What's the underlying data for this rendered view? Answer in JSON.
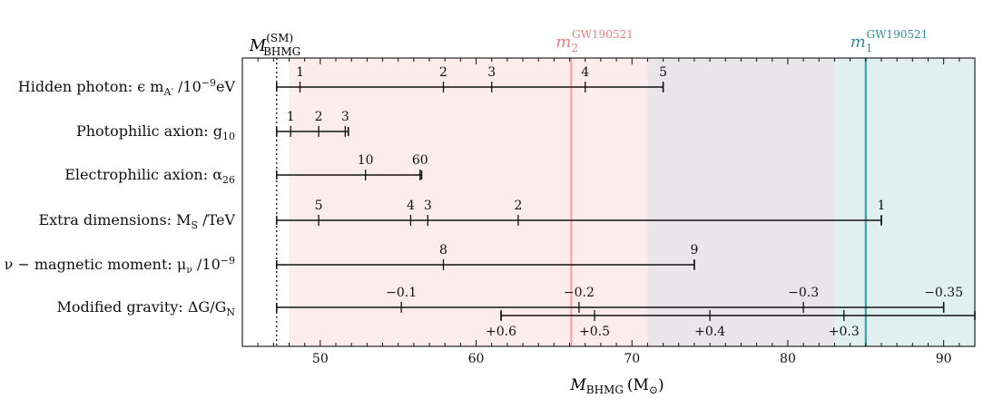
{
  "chart_data": {
    "type": "interval",
    "xlabel_main": "M",
    "xlabel_sub": "BHMG",
    "xlabel_unit": "(M",
    "xlabel_unit_sym": "⊙",
    "xlabel_unit_close": ")",
    "xlim": [
      45,
      92
    ],
    "xticks": [
      "50",
      "60",
      "70",
      "80",
      "90"
    ],
    "xtick_values": [
      50,
      60,
      70,
      80,
      90
    ],
    "colors": {
      "region_pink": "#fcecec",
      "region_gray": "#e8e6e8",
      "region_teal": "#e2efef",
      "line_m2": "#f4a5a8",
      "line_m1": "#3aa0a6",
      "label_m2": "#ee7f7f",
      "label_m1": "#2f8f8f",
      "axis": "#111111"
    },
    "regions": [
      {
        "name": "pink",
        "x0": 48,
        "x1": 71
      },
      {
        "name": "gray",
        "x0": 71,
        "x1": 83
      },
      {
        "name": "teal",
        "x0": 83,
        "x1": 92
      }
    ],
    "reference_lines": [
      {
        "key": "sm",
        "x": 47.2,
        "style": "dotted",
        "label_main": "M",
        "label_sup": "(SM)",
        "label_sub": "BHMG"
      },
      {
        "key": "m2",
        "x": 66.1,
        "style": "solid",
        "label_main": "m",
        "label_sub": "2",
        "label_sup": "GW190521"
      },
      {
        "key": "m1",
        "x": 85.0,
        "style": "solid",
        "label_main": "m",
        "label_sub": "1",
        "label_sup": "GW190521"
      }
    ],
    "rows": [
      {
        "label": "Hidden photon:  ϵ m",
        "label_sub": "A′",
        "label_tail": " /10",
        "label_sup": "−9",
        "label_end": "eV",
        "x_start": 47.2,
        "x_end": 72.0,
        "points": [
          {
            "x": 48.7,
            "label": "1"
          },
          {
            "x": 57.9,
            "label": "2"
          },
          {
            "x": 61.0,
            "label": "3"
          },
          {
            "x": 67.0,
            "label": "4"
          },
          {
            "x": 72.0,
            "label": "5"
          }
        ]
      },
      {
        "label": "Photophilic axion:  g",
        "label_sub": "10",
        "x_start": 47.2,
        "x_end": 51.8,
        "points": [
          {
            "x": 48.1,
            "label": "1"
          },
          {
            "x": 49.9,
            "label": "2"
          },
          {
            "x": 51.6,
            "label": "3"
          }
        ]
      },
      {
        "label": "Electrophilic axion:  α",
        "label_sub": "26",
        "x_start": 47.2,
        "x_end": 56.5,
        "points": [
          {
            "x": 52.9,
            "label": "10"
          },
          {
            "x": 56.4,
            "label": "60"
          }
        ]
      },
      {
        "label": "Extra dimensions:  M",
        "label_sub": "S",
        "label_tail": " /TeV",
        "x_start": 47.2,
        "x_end": 86.0,
        "points": [
          {
            "x": 49.9,
            "label": "5"
          },
          {
            "x": 55.8,
            "label": "4"
          },
          {
            "x": 56.9,
            "label": "3"
          },
          {
            "x": 62.7,
            "label": "2"
          },
          {
            "x": 86.0,
            "label": "1"
          }
        ]
      },
      {
        "label": "ν − magnetic moment:  μ",
        "label_sub": "ν",
        "label_tail": " /10",
        "label_sup": "−9",
        "x_start": 47.2,
        "x_end": 74.0,
        "points": [
          {
            "x": 57.9,
            "label": "8"
          },
          {
            "x": 74.0,
            "label": "9"
          }
        ]
      },
      {
        "label": "Modified gravity:  ΔG/G",
        "label_sub": "N",
        "x_start": 47.2,
        "x_end": 90.0,
        "points": [
          {
            "x": 55.2,
            "label": "−0.1"
          },
          {
            "x": 66.6,
            "label": "−0.2"
          },
          {
            "x": 81.0,
            "label": "−0.3"
          },
          {
            "x": 90.0,
            "label": "−0.35"
          }
        ],
        "second_bar": {
          "x_start": 61.6,
          "x_end": 92.0,
          "points": [
            {
              "x": 61.6,
              "label": "+0.6"
            },
            {
              "x": 67.6,
              "label": "+0.5"
            },
            {
              "x": 75.0,
              "label": "+0.4"
            },
            {
              "x": 83.6,
              "label": "+0.3"
            }
          ]
        }
      }
    ]
  }
}
